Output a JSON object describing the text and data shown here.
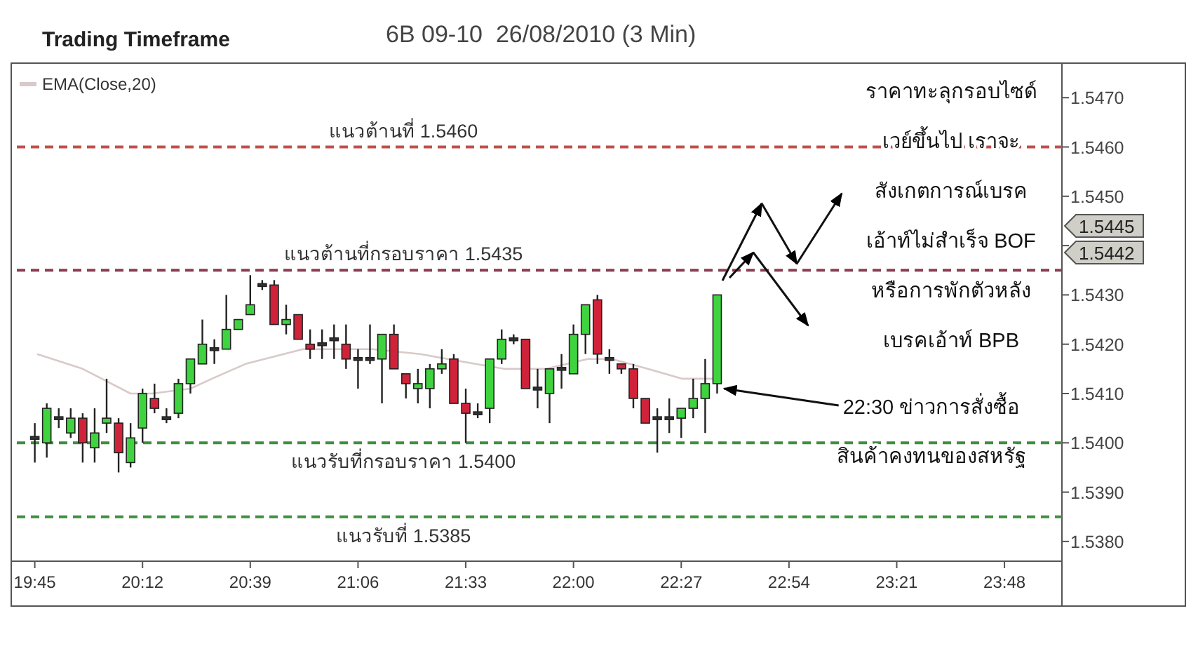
{
  "chart_data": {
    "type": "candlestick",
    "title": "Trading Timeframe",
    "subtitle": "6B 09-10  26/08/2010 (3 Min)",
    "x": [
      19.75,
      19.8,
      19.85,
      19.9,
      19.95,
      20,
      20.05,
      20.1,
      20.15,
      20.2,
      20.25,
      20.3,
      20.35,
      20.4,
      20.45,
      20.5,
      20.55,
      20.6,
      20.65,
      20.7,
      20.75,
      20.8,
      20.85,
      20.9,
      20.95,
      21,
      21.05,
      21.1,
      21.15,
      21.2,
      21.25,
      21.3,
      21.35,
      21.4,
      21.45,
      21.5,
      21.55,
      21.6,
      21.65,
      21.7,
      21.75,
      21.8,
      21.85,
      21.9,
      21.95,
      22,
      22.05,
      22.1,
      22.15,
      22.2,
      22.25,
      22.3,
      22.35,
      22.4,
      22.45,
      22.5,
      22.55,
      22.6
    ],
    "ohlc": [
      [
        1.5401,
        1.5404,
        1.5396,
        1.5401
      ],
      [
        1.54,
        1.5408,
        1.5397,
        1.5407
      ],
      [
        1.5405,
        1.5407,
        1.5403,
        1.5405
      ],
      [
        1.5402,
        1.5407,
        1.5401,
        1.5405
      ],
      [
        1.5405,
        1.5406,
        1.5396,
        1.54
      ],
      [
        1.5399,
        1.5407,
        1.5396,
        1.5402
      ],
      [
        1.5404,
        1.5413,
        1.5402,
        1.5405
      ],
      [
        1.5404,
        1.5405,
        1.5394,
        1.5398
      ],
      [
        1.5396,
        1.5404,
        1.5395,
        1.5401
      ],
      [
        1.5403,
        1.5411,
        1.54,
        1.541
      ],
      [
        1.5409,
        1.5412,
        1.5406,
        1.5407
      ],
      [
        1.5405,
        1.5407,
        1.5404,
        1.5405
      ],
      [
        1.5406,
        1.5413,
        1.5405,
        1.5412
      ],
      [
        1.5412,
        1.5417,
        1.541,
        1.5417
      ],
      [
        1.5416,
        1.5425,
        1.5416,
        1.542
      ],
      [
        1.5419,
        1.5421,
        1.5416,
        1.5419
      ],
      [
        1.5419,
        1.543,
        1.5419,
        1.5423
      ],
      [
        1.5423,
        1.5425,
        1.5423,
        1.5425
      ],
      [
        1.5426,
        1.5434,
        1.5426,
        1.5428
      ],
      [
        1.5432,
        1.5433,
        1.5431,
        1.5432
      ],
      [
        1.5432,
        1.5433,
        1.5424,
        1.5424
      ],
      [
        1.5424,
        1.5428,
        1.5422,
        1.5425
      ],
      [
        1.5426,
        1.5426,
        1.5421,
        1.5421
      ],
      [
        1.542,
        1.5423,
        1.5417,
        1.5419
      ],
      [
        1.542,
        1.5423,
        1.5417,
        1.542
      ],
      [
        1.5421,
        1.5424,
        1.5417,
        1.5421
      ],
      [
        1.542,
        1.5424,
        1.5415,
        1.5417
      ],
      [
        1.5417,
        1.5419,
        1.5411,
        1.5417
      ],
      [
        1.5417,
        1.5424,
        1.5416,
        1.5417
      ],
      [
        1.5417,
        1.5422,
        1.5408,
        1.5422
      ],
      [
        1.5422,
        1.5424,
        1.5415,
        1.5415
      ],
      [
        1.5414,
        1.5414,
        1.5409,
        1.5412
      ],
      [
        1.5411,
        1.5415,
        1.5408,
        1.5412
      ],
      [
        1.5411,
        1.5416,
        1.5407,
        1.5415
      ],
      [
        1.5415,
        1.5419,
        1.5414,
        1.5416
      ],
      [
        1.5417,
        1.5418,
        1.5408,
        1.5408
      ],
      [
        1.5408,
        1.5411,
        1.54,
        1.5406
      ],
      [
        1.5406,
        1.5408,
        1.5405,
        1.5406
      ],
      [
        1.5407,
        1.5417,
        1.5404,
        1.5417
      ],
      [
        1.5417,
        1.5423,
        1.5416,
        1.5421
      ],
      [
        1.5421,
        1.5422,
        1.542,
        1.5421
      ],
      [
        1.5421,
        1.5421,
        1.5411,
        1.5411
      ],
      [
        1.5411,
        1.5415,
        1.5407,
        1.5411
      ],
      [
        1.541,
        1.5415,
        1.5404,
        1.5415
      ],
      [
        1.5415,
        1.5418,
        1.5411,
        1.5415
      ],
      [
        1.5414,
        1.5424,
        1.5414,
        1.5422
      ],
      [
        1.5422,
        1.5428,
        1.5418,
        1.5428
      ],
      [
        1.5429,
        1.543,
        1.5416,
        1.5418
      ],
      [
        1.5417,
        1.5419,
        1.5414,
        1.5417
      ],
      [
        1.5416,
        1.5416,
        1.5414,
        1.5415
      ],
      [
        1.5415,
        1.5416,
        1.5407,
        1.5409
      ],
      [
        1.5409,
        1.5409,
        1.5404,
        1.5404
      ],
      [
        1.5405,
        1.5407,
        1.5398,
        1.5405
      ],
      [
        1.5405,
        1.5409,
        1.5402,
        1.5405
      ],
      [
        1.5405,
        1.5407,
        1.5401,
        1.5407
      ],
      [
        1.5407,
        1.5413,
        1.5405,
        1.5409
      ],
      [
        1.5409,
        1.5417,
        1.5402,
        1.5412
      ],
      [
        1.5412,
        1.543,
        1.541,
        1.543
      ]
    ],
    "series": [
      {
        "type": "line",
        "name": "EMA(Close,20)",
        "color": "#d9c9c9",
        "x": [
          19.76,
          19.95,
          20.15,
          20.24,
          20.4,
          20.49,
          20.63,
          20.87,
          20.96,
          21.16,
          21.36,
          21.59,
          21.71,
          21.885,
          22.06,
          22.16,
          22.31,
          22.455,
          22.59
        ],
        "values": [
          1.5418,
          1.5415,
          1.541,
          1.541,
          1.5411,
          1.5413,
          1.5416,
          1.5419,
          1.5419,
          1.5419,
          1.5418,
          1.5416,
          1.5415,
          1.5415,
          1.5417,
          1.5417,
          1.5415,
          1.5413,
          1.5413
        ]
      }
    ],
    "xlim": [
      19.675,
      24.04
    ],
    "xticks": [
      {
        "value": 19.75,
        "label": "19:45"
      },
      {
        "value": 20.2,
        "label": "20:12"
      },
      {
        "value": 20.65,
        "label": "20:39"
      },
      {
        "value": 21.1,
        "label": "21:06"
      },
      {
        "value": 21.55,
        "label": "21:33"
      },
      {
        "value": 22.0,
        "label": "22:00"
      },
      {
        "value": 22.45,
        "label": "22:27"
      },
      {
        "value": 22.9,
        "label": "22:54"
      },
      {
        "value": 23.35,
        "label": "23:21"
      },
      {
        "value": 23.8,
        "label": "23:48"
      }
    ],
    "ylim": [
      1.5376,
      1.5477
    ],
    "yticks": [
      {
        "value": 1.538,
        "label": "1.5380"
      },
      {
        "value": 1.539,
        "label": "1.5390"
      },
      {
        "value": 1.54,
        "label": "1.5400"
      },
      {
        "value": 1.541,
        "label": "1.5410"
      },
      {
        "value": 1.542,
        "label": "1.5420"
      },
      {
        "value": 1.543,
        "label": "1.5430"
      },
      {
        "value": 1.544,
        "label": null
      },
      {
        "value": 1.545,
        "label": "1.5450"
      },
      {
        "value": 1.546,
        "label": "1.5460"
      },
      {
        "value": 1.547,
        "label": "1.5470"
      }
    ],
    "ref_lines": [
      {
        "axis": "y",
        "value": 1.546,
        "label": "แนวต้านที่ 1.5460",
        "color": "#c0504d",
        "line_style": "dashed"
      },
      {
        "axis": "y",
        "value": 1.5435,
        "label": "แนวต้านที่กรอบราคา 1.5435",
        "color": "#8c3c50",
        "line_style": "dashed"
      },
      {
        "axis": "y",
        "value": 1.54,
        "label": "แนวรับที่กรอบราคา 1.5400",
        "color": "#3f8f3f",
        "line_style": "dashed"
      },
      {
        "axis": "y",
        "value": 1.5385,
        "label": "แนวรับที่ 1.5385",
        "color": "#3f8f3f",
        "line_style": "dashed"
      }
    ],
    "annotations": [
      "ราคาทะลุกรอบไซด์",
      "เวย์ขึ้นไป เราจะ",
      "สังเกตการณ์เบรค",
      "เอ้าท์ไม่สำเร็จ BOF",
      "หรือการพักตัวหลัง",
      "เบรคเอ้าท์ BPB",
      {
        "text": "22:30 ข่าวการสั่งซื้อ",
        "x": 22.6,
        "y": 1.5411
      },
      "สินค้าคงทนของสหรัฐ",
      "1.5445",
      "1.5442"
    ],
    "grid": false,
    "legend": "top left"
  }
}
